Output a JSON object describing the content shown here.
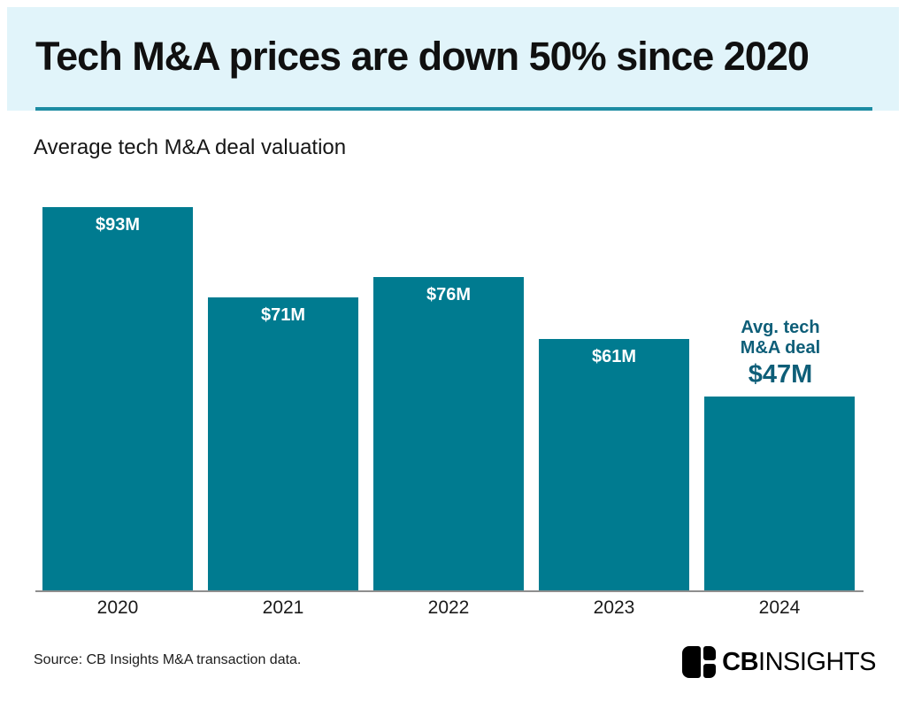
{
  "header": {
    "title": "Tech M&A prices are down 50% since 2020"
  },
  "subtitle": "Average tech M&A deal valuation",
  "chart_data": {
    "type": "bar",
    "title": "Average tech M&A deal valuation",
    "categories": [
      "2020",
      "2021",
      "2022",
      "2023",
      "2024"
    ],
    "values": [
      93,
      71,
      76,
      61,
      47
    ],
    "unit": "USD millions",
    "value_labels": [
      "$93M",
      "$71M",
      "$76M",
      "$61M",
      "$47M"
    ],
    "label_placement": [
      "inside",
      "inside",
      "inside",
      "inside",
      "above"
    ],
    "annotation": {
      "lines": [
        "Avg. tech",
        "M&A deal"
      ],
      "value": "$47M"
    },
    "grid": false,
    "legend": false,
    "xlabel": "",
    "ylabel": ""
  },
  "colors": {
    "band_bg": "#e1f4fa",
    "rule": "#1d8ca3",
    "bar": "#007b90",
    "bar_label": "#ffffff",
    "annotation_text": "#0e5e78",
    "axis_line": "#8e8e8e"
  },
  "footer": {
    "source": "Source: CB Insights M&A transaction data.",
    "logo": {
      "icon": "cbinsights-mark-icon",
      "text_bold": "CB",
      "text_rest": "INSIGHTS"
    }
  }
}
